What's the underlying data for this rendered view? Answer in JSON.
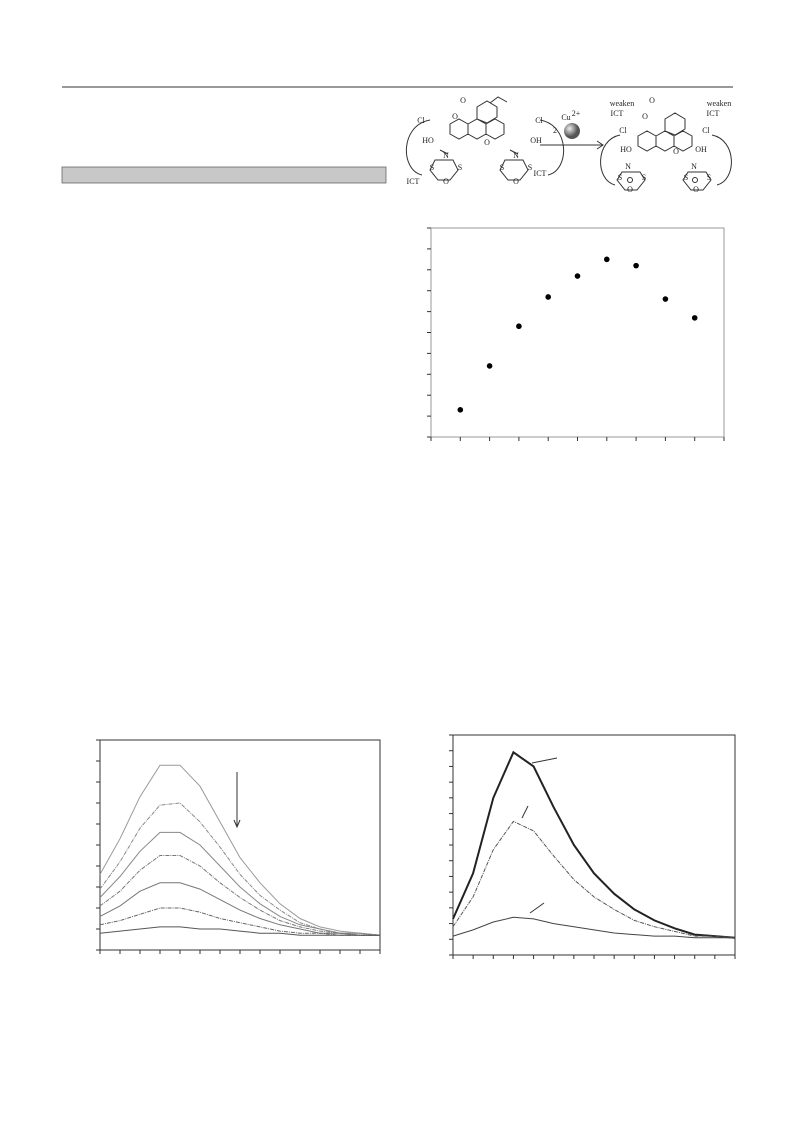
{
  "scheme": {
    "labels": [
      "O",
      "O",
      "Cl",
      "Cl",
      "HO",
      "OH",
      "O",
      "N",
      "S",
      "S",
      "O",
      "N",
      "S",
      "S",
      "O",
      "ICT",
      "ICT",
      "2",
      "Cu",
      "2+",
      "weaken",
      "ICT",
      "weaken",
      "ICT",
      "O",
      "O",
      "Cl",
      "Cl",
      "HO",
      "OH",
      "O",
      "N",
      "S",
      "S",
      "O",
      "N",
      "S",
      "S",
      "O"
    ]
  },
  "chart_data": [
    {
      "type": "scatter",
      "x": [
        1,
        2,
        3,
        4,
        5,
        6,
        7,
        8,
        9
      ],
      "values": [
        1.3,
        3.4,
        5.3,
        6.7,
        7.7,
        8.5,
        8.2,
        6.6,
        5.7
      ],
      "color": "#000000",
      "xlim": [
        0,
        10
      ],
      "ylim": [
        0,
        10
      ],
      "xticks": [
        0,
        1,
        2,
        3,
        4,
        5,
        6,
        7,
        8,
        9,
        10
      ],
      "yticks": [
        0,
        1,
        2,
        3,
        4,
        5,
        6,
        7,
        8,
        9,
        10
      ]
    },
    {
      "type": "line",
      "x": [
        0,
        1,
        2,
        3,
        4,
        5,
        6,
        7,
        8,
        9,
        10,
        11,
        12,
        13,
        14
      ],
      "xlim": [
        0,
        14
      ],
      "ylim": [
        0,
        10
      ],
      "xticks": [
        0,
        1,
        2,
        3,
        4,
        5,
        6,
        7,
        8,
        9,
        10,
        11,
        12,
        13,
        14
      ],
      "yticks": [
        0,
        1,
        2,
        3,
        4,
        5,
        6,
        7,
        8,
        9,
        10
      ],
      "series": [
        {
          "color": "#999999",
          "values": [
            3.6,
            5.3,
            7.3,
            8.8,
            8.8,
            7.8,
            6.1,
            4.4,
            3.2,
            2.2,
            1.5,
            1.1,
            0.9,
            0.8,
            0.7
          ]
        },
        {
          "color": "#888888",
          "values": [
            2.9,
            4.2,
            5.8,
            6.9,
            7.0,
            6.1,
            4.9,
            3.6,
            2.6,
            1.9,
            1.3,
            1.0,
            0.8,
            0.8,
            0.7
          ]
        },
        {
          "color": "#888888",
          "values": [
            2.5,
            3.5,
            4.7,
            5.6,
            5.6,
            5.0,
            4.0,
            3.0,
            2.2,
            1.6,
            1.2,
            1.0,
            0.8,
            0.8,
            0.7
          ]
        },
        {
          "color": "#777777",
          "values": [
            2.1,
            2.8,
            3.8,
            4.5,
            4.5,
            4.0,
            3.2,
            2.5,
            1.9,
            1.4,
            1.1,
            0.9,
            0.8,
            0.7,
            0.7
          ]
        },
        {
          "color": "#777777",
          "values": [
            1.6,
            2.1,
            2.8,
            3.2,
            3.2,
            2.9,
            2.4,
            1.9,
            1.5,
            1.2,
            1.0,
            0.8,
            0.8,
            0.7,
            0.7
          ]
        },
        {
          "color": "#666666",
          "values": [
            1.2,
            1.4,
            1.7,
            2.0,
            2.0,
            1.8,
            1.5,
            1.3,
            1.1,
            0.9,
            0.8,
            0.8,
            0.7,
            0.7,
            0.7
          ]
        },
        {
          "color": "#555555",
          "values": [
            0.8,
            0.9,
            1.0,
            1.1,
            1.1,
            1.0,
            1.0,
            0.9,
            0.8,
            0.8,
            0.7,
            0.7,
            0.7,
            0.7,
            0.7
          ]
        }
      ]
    },
    {
      "type": "line",
      "x": [
        0,
        1,
        2,
        3,
        4,
        5,
        6,
        7,
        8,
        9,
        10,
        11,
        12,
        13,
        14
      ],
      "xlim": [
        0,
        14
      ],
      "ylim": [
        0,
        14
      ],
      "xticks": [
        0,
        1,
        2,
        3,
        4,
        5,
        6,
        7,
        8,
        9,
        10,
        11,
        12,
        13,
        14
      ],
      "yticks": [
        0,
        1,
        2,
        3,
        4,
        5,
        6,
        7,
        8,
        9,
        10,
        11,
        12,
        13,
        14
      ],
      "series": [
        {
          "color": "#222222",
          "values": [
            2.3,
            5.2,
            10.0,
            12.9,
            12.0,
            9.4,
            7.0,
            5.2,
            3.9,
            2.9,
            2.2,
            1.7,
            1.3,
            1.2,
            1.1
          ]
        },
        {
          "color": "#555555",
          "values": [
            1.8,
            3.7,
            6.7,
            8.5,
            7.9,
            6.3,
            4.8,
            3.7,
            2.9,
            2.2,
            1.8,
            1.5,
            1.2,
            1.2,
            1.1
          ]
        },
        {
          "color": "#444444",
          "values": [
            1.2,
            1.6,
            2.1,
            2.4,
            2.3,
            2.0,
            1.8,
            1.6,
            1.4,
            1.3,
            1.2,
            1.2,
            1.1,
            1.1,
            1.1
          ]
        }
      ]
    }
  ]
}
